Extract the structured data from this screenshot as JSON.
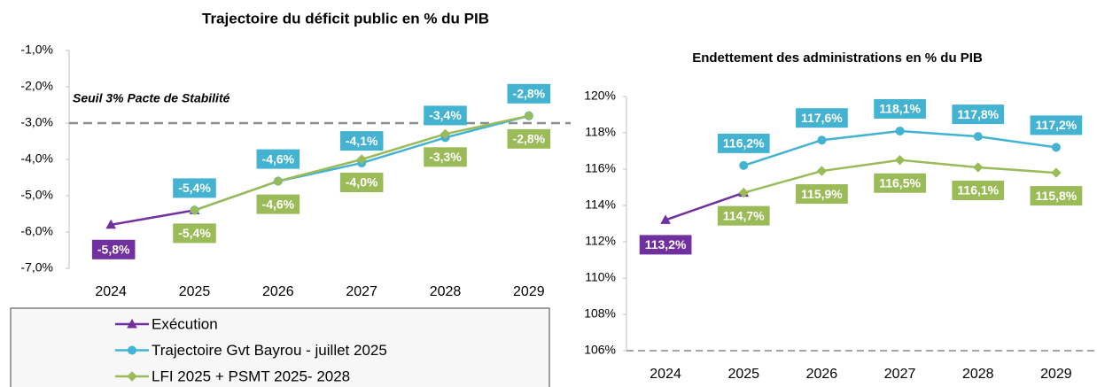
{
  "chart_data": [
    {
      "type": "line",
      "title": "Trajectoire du déficit public en % du PIB",
      "categories": [
        "2024",
        "2025",
        "2026",
        "2027",
        "2028",
        "2029"
      ],
      "ylim": [
        -7,
        -1
      ],
      "yticks": [
        {
          "value": -7,
          "label": "-7,0%"
        },
        {
          "value": -6,
          "label": "-6,0%"
        },
        {
          "value": -5,
          "label": "-5,0%"
        },
        {
          "value": -4,
          "label": "-4,0%"
        },
        {
          "value": -3,
          "label": "-3,0%"
        },
        {
          "value": -2,
          "label": "-2,0%"
        },
        {
          "value": -1,
          "label": "-1,0%"
        }
      ],
      "reference_line": {
        "value": -3,
        "label": "Seuil 3% Pacte de Stabilité",
        "color": "#8c8c8c"
      },
      "legend": "bottom-left",
      "series": [
        {
          "name": "Exécution",
          "color": "#7030a0",
          "marker": "triangle",
          "values": [
            -5.8,
            -5.4,
            null,
            null,
            null,
            null
          ],
          "value_labels": [
            "-5,8%",
            null,
            null,
            null,
            null,
            null
          ]
        },
        {
          "name": "Trajectoire Gvt Bayrou - juillet 2025",
          "color": "#43b3d1",
          "marker": "circle",
          "values": [
            null,
            -5.4,
            -4.6,
            -4.1,
            -3.4,
            -2.8
          ],
          "value_labels": [
            null,
            "-5,4%",
            "-4,6%",
            "-4,1%",
            "-3,4%",
            "-2,8%"
          ]
        },
        {
          "name": "LFI 2025 + PSMT 2025- 2028",
          "color": "#9bbb59",
          "marker": "diamond",
          "values": [
            null,
            -5.4,
            -4.6,
            -4.0,
            -3.3,
            -2.8
          ],
          "value_labels": [
            null,
            "-5,4%",
            "-4,6%",
            "-4,0%",
            "-3,3%",
            "-2,8%"
          ]
        }
      ]
    },
    {
      "type": "line",
      "title": "Endettement des administrations en % du PIB",
      "categories": [
        "2024",
        "2025",
        "2026",
        "2027",
        "2028",
        "2029"
      ],
      "ylim": [
        106,
        120
      ],
      "yticks": [
        {
          "value": 106,
          "label": "106%"
        },
        {
          "value": 108,
          "label": "108%"
        },
        {
          "value": 110,
          "label": "110%"
        },
        {
          "value": 112,
          "label": "112%"
        },
        {
          "value": 114,
          "label": "114%"
        },
        {
          "value": 116,
          "label": "116%"
        },
        {
          "value": 118,
          "label": "118%"
        },
        {
          "value": 120,
          "label": "120%"
        }
      ],
      "series": [
        {
          "color": "#7030a0",
          "marker": "triangle",
          "values": [
            113.2,
            114.7,
            null,
            null,
            null,
            null
          ],
          "value_labels": [
            "113,2%",
            null,
            null,
            null,
            null,
            null
          ]
        },
        {
          "color": "#43b3d1",
          "marker": "circle",
          "values": [
            null,
            116.2,
            117.6,
            118.1,
            117.8,
            117.2
          ],
          "value_labels": [
            null,
            "116,2%",
            "117,6%",
            "118,1%",
            "117,8%",
            "117,2%"
          ]
        },
        {
          "color": "#9bbb59",
          "marker": "diamond",
          "values": [
            null,
            114.7,
            115.9,
            116.5,
            116.1,
            115.8
          ],
          "value_labels": [
            null,
            "114,7%",
            "115,9%",
            "116,5%",
            "116,1%",
            "115,8%"
          ]
        }
      ]
    }
  ]
}
